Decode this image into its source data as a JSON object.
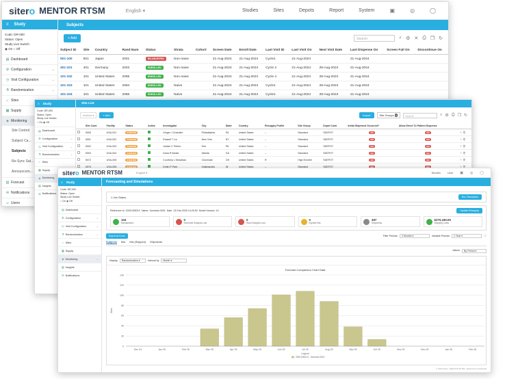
{
  "brand": {
    "logo_a": "siter",
    "logo_b": "o",
    "product": "MENTOR RTSM",
    "language": "English"
  },
  "nav": {
    "studies": "Studies",
    "sites": "Sites",
    "depots": "Depots",
    "report": "Report",
    "system": "System"
  },
  "nav_front": {
    "studies": "Studies",
    "user": "User"
  },
  "colors": {
    "accent": "#29aee0",
    "ok": "#3fb24a",
    "danger": "#d9534f",
    "warn": "#f0a040",
    "bar": "#c9c78d"
  },
  "sidebar": {
    "header": "Study",
    "code": "Code: DR-000",
    "status": "Status: Open",
    "live_switch": "Study Live Switch:",
    "on": "On",
    "off": "Off",
    "items": [
      "Dashboard",
      "Configuration",
      "Visit Configuration",
      "Randomization",
      "Sites",
      "Supply",
      "Monitoring",
      "Forecast",
      "Notifications",
      "Users"
    ],
    "monitoring_subs": [
      "Site Control",
      "Subject Ca...",
      "Subjects",
      "Re-Sync Sat...",
      "Announcem..."
    ]
  },
  "sidebar2": {
    "header": "Study",
    "code": "Code: DR-000",
    "status": "Status: Open",
    "live_switch": "Study Live Switch:",
    "on": "On",
    "off": "Off",
    "items": [
      "Dashboard",
      "Configuration",
      "Visit Configuration",
      "Randomization",
      "Sites",
      "Supply",
      "Monitoring",
      "Insights",
      "Notifications"
    ]
  },
  "sidebar3": {
    "header": "Study",
    "code": "Code: DR-000",
    "status": "Status: Open",
    "live_switch": "Study Live Switch:",
    "on": "On",
    "off": "Off",
    "items": [
      "Dashboard",
      "Configuration",
      "Visit Configuration",
      "Randomization",
      "Sites",
      "Supply",
      "Monitoring",
      "Insights",
      "Notifications"
    ]
  },
  "subjects": {
    "title": "Subjects",
    "add": "+ Add",
    "search_placeholder": "Search",
    "columns": [
      "Subject ID",
      "Site",
      "Country",
      "Rand Num",
      "Status",
      "Strata",
      "Cohort",
      "Screen Date",
      "Enroll Date",
      "Last Visit ID",
      "Last Visit On",
      "Next Visit Date",
      "Last Dispense On",
      "Screen Fail On",
      "Discontinue On"
    ],
    "rows": [
      [
        "501-100",
        "501",
        "Japan",
        "2001",
        "RE-DROPPED",
        "Non-naive",
        "",
        "21-Aug-2024",
        "21-Aug-2024",
        "Cycle1",
        "21-Aug-2024",
        "",
        "21-Aug-2024",
        "",
        ""
      ],
      [
        "401-101",
        "401",
        "Germany",
        "2003",
        "ENROLLED",
        "Non-naive",
        "",
        "21-Aug-2024",
        "21-Aug-2024",
        "Cycle 2",
        "21-Aug-2024",
        "28-Aug-2024",
        "21-Aug-2024",
        "",
        ""
      ],
      [
        "101-102",
        "101",
        "United States",
        "2085",
        "ENROLLED",
        "Non-naive",
        "",
        "21-Aug-2024",
        "21-Aug-2024",
        "Cycle 4",
        "21-Aug-2024",
        "28-Aug-2024",
        "21-Aug-2024",
        "",
        ""
      ],
      [
        "101-103",
        "101",
        "United States",
        "2084",
        "ENROLLED",
        "Naive",
        "",
        "21-Aug-2024",
        "21-Aug-2024",
        "Cycle1",
        "21-Aug-2024",
        "28-Aug-2024",
        "21-Aug-2024",
        "",
        ""
      ],
      [
        "101-104",
        "101",
        "United States",
        "2086",
        "ENROLLED",
        "Naive",
        "",
        "21-Aug-2024",
        "21-Aug-2024",
        "Cycle1",
        "21-Aug-2024",
        "28-Aug-2024",
        "21-Aug-2024",
        "",
        ""
      ],
      [
        "401-105",
        "401",
        "Germany",
        "2097",
        "ENROLLED",
        "Non-naive",
        "",
        "21-Aug-2024",
        "21-Aug-2024",
        "Cycle 3",
        "21-Aug-2024",
        "28-Aug-2024",
        "21-Aug-2024",
        "",
        ""
      ]
    ]
  },
  "sites": {
    "title": "Site List",
    "actions": "Actions",
    "add": "+ Add",
    "import": "Import",
    "site_groups": "Site Groups",
    "site_groups_count": "0",
    "search_placeholder": "Search",
    "columns": [
      "",
      "Site Code",
      "Facility",
      "Status",
      "Active",
      "Investigator",
      "City",
      "State",
      "Country",
      "Resupply Profile",
      "Site Group",
      "Depot Code",
      "Initial Shipment Occurred?",
      "Allow Direct To Patient Dispense",
      ""
    ],
    "rows": [
      [
        "5005",
        "USA-001",
        "STARTED",
        "Ginger J Chandler",
        "Philadelphia",
        "PA",
        "United States",
        "--",
        "Standard",
        "SDEPOT",
        "NO",
        "NO"
      ],
      [
        "5001",
        "USA-002",
        "STARTED",
        "Russell T Liu",
        "New York",
        "NY",
        "United States",
        "--",
        "Standard",
        "SDEPOT",
        "NO",
        "NO"
      ],
      [
        "5002",
        "USA-003",
        "STARTED",
        "Jordan C Peters",
        "Erie",
        "PA",
        "United States",
        "--",
        "Standard",
        "SDEPOT",
        "NO",
        "NO"
      ],
      [
        "5003",
        "USA-004",
        "STARTED",
        "Dana R Banks",
        "Atlanta",
        "GA",
        "United States",
        "--",
        "Standard",
        "SDEPOT",
        "NO",
        "NO"
      ],
      [
        "5072",
        "USA-005",
        "STARTED",
        "Courtney L Meadows",
        "Cincinnati",
        "OH",
        "United States",
        "R",
        "High Enroller",
        "SDEPOT",
        "NO",
        "NO"
      ],
      [
        "5075",
        "USA-006",
        "STARTED",
        "Dmitri P Park",
        "Indianapolis",
        "IN",
        "United States",
        "--",
        "Standard",
        "SDEPOT",
        "NO",
        "NO"
      ],
      [
        "5074",
        "USA-007",
        "STARTED",
        "Basile F Moreno",
        "Los Angeles",
        "CA",
        "United States",
        "--",
        "Standard",
        "SDEPOT",
        "NO",
        "NO"
      ]
    ]
  },
  "forecast": {
    "title": "Forecasting and Simulations",
    "job_status": "1 Job Status",
    "run_simulation": "Run Simulation",
    "reference_line": "Reference Id  2025.00001X  Name  Scenario 0001  Date  13-Feb-2025 14:20:52  Model Version  10",
    "update_resupply": "Update Resupply",
    "kpis": [
      {
        "value": "104",
        "label": "Randomized",
        "color": "#3fb24a"
      },
      {
        "value": "0",
        "label": "Screened Subjects Lost",
        "color": "#d9534f"
      },
      {
        "value": "0",
        "label": "Rand Subjects Lost",
        "color": "#d9534f"
      },
      {
        "value": "0",
        "label": "Expired Kits",
        "color": "#e6b42e"
      },
      {
        "value": "497",
        "label": "Shipments",
        "color": "#888888"
      },
      {
        "value": "$270,190.00",
        "label": "Shipping Costs",
        "color": "#3fb24a"
      }
    ],
    "excel_button": "Export as Excel",
    "filter_periods_label": "Filter Periods",
    "filter_periods_value": "2 Months",
    "variable_periods_label": "Variable Periods",
    "variable_periods_value": "1 Year",
    "tabs": [
      "Subjects",
      "Kits",
      "Kits (Shipped)",
      "Shipments"
    ],
    "values_label": "Values",
    "values_value": "By Period",
    "display_label": "Display",
    "display_value": "Randomization",
    "interval_label": "Interval by",
    "interval_value": "Month",
    "chart_title": "Forecast Comparison Chart Data",
    "legend_title": "Legend",
    "ylabel": "Sites"
  },
  "chart_data": {
    "type": "bar",
    "title": "Forecast Comparison Chart Data",
    "xlabel": "",
    "ylabel": "Sites",
    "ylim": [
      0,
      140
    ],
    "yticks": [
      0,
      20,
      40,
      60,
      80,
      100,
      120,
      140
    ],
    "categories": [
      "Dec 24",
      "Jan 25",
      "Feb 25",
      "Mar 25",
      "Apr 25",
      "May 25",
      "Jun 25",
      "Jul 25",
      "Aug 25",
      "Sep 25",
      "Oct 25",
      "Nov 25",
      "Dec 25",
      "Jan 26",
      "Feb 26"
    ],
    "series": [
      {
        "name": "2025.00001X - Scenario 0001",
        "values": [
          0,
          0,
          0,
          34,
          56,
          74,
          101,
          108,
          88,
          38,
          13,
          0,
          0,
          0,
          0
        ]
      }
    ],
    "legend": "bottom"
  },
  "footer": "© 2025 Sitero. MENTOR RTSM. | Ethical & Confidential"
}
